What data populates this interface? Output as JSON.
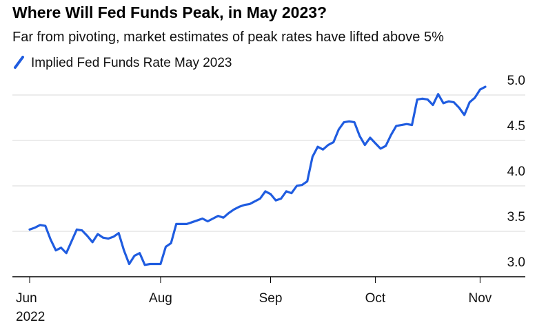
{
  "chart_data": {
    "type": "line",
    "title": "Where Will Fed Funds Peak, in May 2023?",
    "subtitle": "Far from pivoting, market estimates of peak rates have lifted above 5%",
    "categories": [
      "Jun\n2022",
      null,
      null,
      null,
      null,
      null,
      null,
      null,
      null,
      null,
      null,
      null,
      null,
      null,
      null,
      null,
      null,
      null,
      null,
      null,
      null,
      null,
      null,
      null,
      null,
      "Aug",
      null,
      null,
      null,
      null,
      null,
      null,
      null,
      null,
      null,
      null,
      null,
      null,
      null,
      null,
      null,
      null,
      null,
      null,
      null,
      null,
      "Sep",
      null,
      null,
      null,
      null,
      null,
      null,
      null,
      null,
      null,
      null,
      null,
      null,
      null,
      null,
      null,
      null,
      null,
      null,
      null,
      "Oct",
      null,
      null,
      null,
      null,
      null,
      null,
      null,
      null,
      null,
      null,
      null,
      null,
      null,
      null,
      null,
      null,
      null,
      null,
      null,
      "Nov",
      null
    ],
    "series": [
      {
        "name": "Implied Fed Funds Rate May 2023",
        "color": "#1f5ce0",
        "values": [
          3.52,
          3.54,
          3.57,
          3.56,
          3.41,
          3.29,
          3.32,
          3.26,
          3.39,
          3.52,
          3.51,
          3.45,
          3.38,
          3.47,
          3.43,
          3.42,
          3.44,
          3.48,
          3.29,
          3.14,
          3.23,
          3.26,
          3.13,
          3.14,
          3.14,
          3.14,
          3.33,
          3.37,
          3.58,
          3.58,
          3.58,
          3.6,
          3.62,
          3.64,
          3.61,
          3.64,
          3.67,
          3.65,
          3.7,
          3.74,
          3.77,
          3.79,
          3.8,
          3.83,
          3.86,
          3.94,
          3.91,
          3.84,
          3.86,
          3.94,
          3.92,
          4.0,
          4.01,
          4.05,
          4.32,
          4.43,
          4.4,
          4.45,
          4.48,
          4.62,
          4.7,
          4.71,
          4.7,
          4.55,
          4.45,
          4.53,
          4.47,
          4.41,
          4.44,
          4.56,
          4.66,
          4.67,
          4.68,
          4.67,
          4.95,
          4.96,
          4.95,
          4.89,
          5.01,
          4.91,
          4.93,
          4.92,
          4.86,
          4.78,
          4.92,
          4.97,
          5.06,
          5.09
        ]
      }
    ],
    "ylim": [
      3.0,
      5.25
    ],
    "yticks": [
      {
        "value": 3,
        "label": "3.0"
      },
      3.5,
      {
        "value": 4,
        "label": "4.0"
      },
      4.5,
      {
        "value": 5,
        "label": "5.0"
      }
    ],
    "grid": true,
    "legend": "top-left"
  }
}
